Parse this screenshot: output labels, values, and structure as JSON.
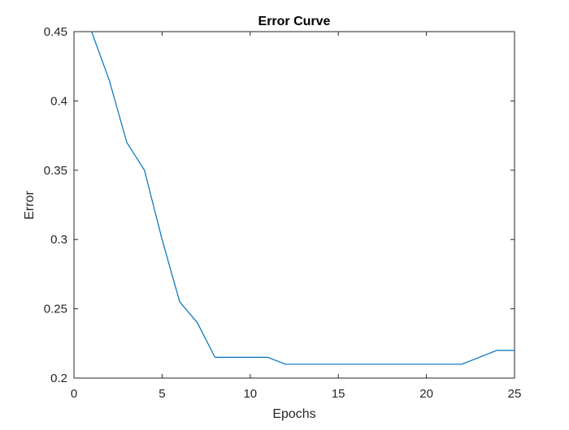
{
  "chart_data": {
    "type": "line",
    "title": "Error Curve",
    "xlabel": "Epochs",
    "ylabel": "Error",
    "xlim": [
      0,
      25
    ],
    "ylim": [
      0.2,
      0.45
    ],
    "xticks": [
      0,
      5,
      10,
      15,
      20,
      25
    ],
    "xtick_labels": [
      "0",
      "5",
      "10",
      "15",
      "20",
      "25"
    ],
    "yticks": [
      0.2,
      0.25,
      0.3,
      0.35,
      0.4,
      0.45
    ],
    "ytick_labels": [
      "0.2",
      "0.25",
      "0.3",
      "0.35",
      "0.4",
      "0.45"
    ],
    "grid": false,
    "series": [
      {
        "color": "#0072bd",
        "x": [
          1,
          2,
          3,
          4,
          5,
          6,
          7,
          8,
          9,
          10,
          11,
          12,
          13,
          14,
          15,
          16,
          17,
          18,
          19,
          20,
          21,
          22,
          23,
          24,
          25
        ],
        "y": [
          0.45,
          0.415,
          0.37,
          0.35,
          0.3,
          0.255,
          0.24,
          0.215,
          0.215,
          0.215,
          0.215,
          0.21,
          0.21,
          0.21,
          0.21,
          0.21,
          0.21,
          0.21,
          0.21,
          0.21,
          0.21,
          0.21,
          0.215,
          0.22,
          0.22
        ]
      }
    ]
  }
}
